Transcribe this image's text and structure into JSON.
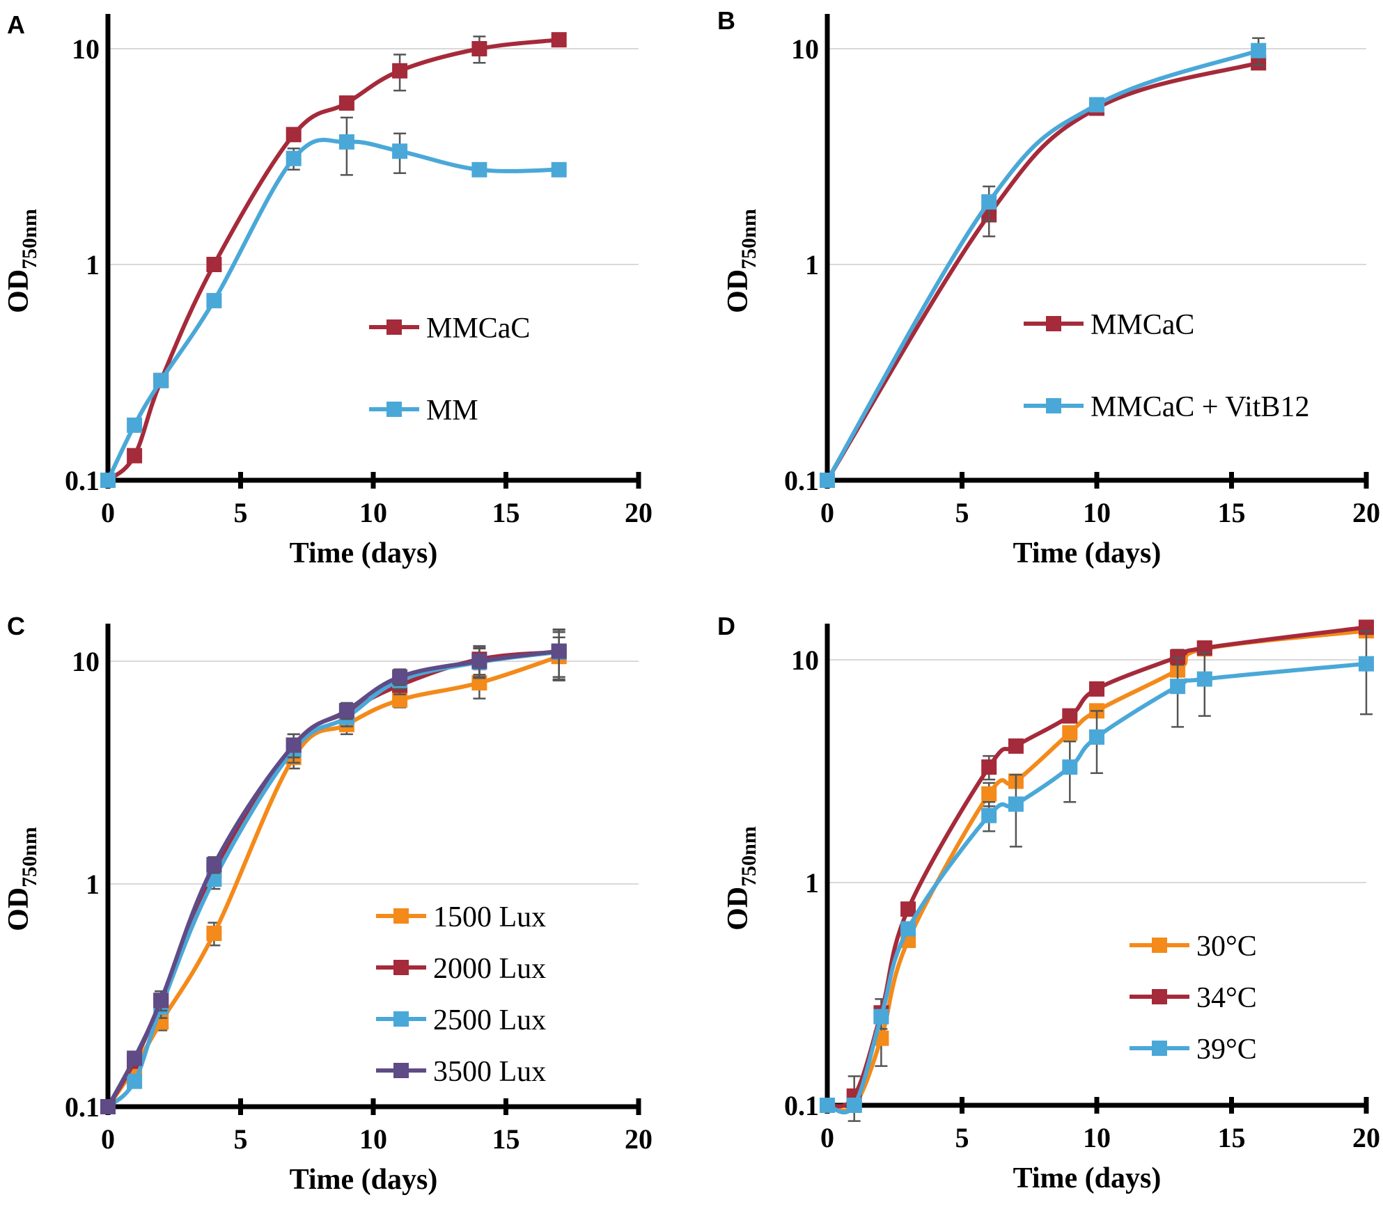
{
  "colors": {
    "red": "#a52a3a",
    "blue": "#4aa8d8",
    "orange": "#f38a1a",
    "purple": "#5f4b86",
    "axis": "#000000",
    "grid": "#d9d9d9",
    "error": "#555555"
  },
  "chart_data": [
    {
      "panel": "A",
      "type": "line",
      "yscale": "log",
      "xlabel": "Time (days)",
      "ylabel_main": "OD",
      "ylabel_sub": "750nm",
      "xlim": [
        0,
        20
      ],
      "ylim": [
        0.1,
        15
      ],
      "xticks": [
        0,
        5,
        10,
        15,
        20
      ],
      "xtick_labels": [
        "0",
        "5",
        "10",
        "15",
        "20"
      ],
      "yticks": [
        0.1,
        1,
        10
      ],
      "ytick_labels": [
        "0.1",
        "1",
        "10"
      ],
      "legend_position": "center-right",
      "series": [
        {
          "name": "MMCaC",
          "color": "red",
          "x": [
            0,
            1,
            2,
            4,
            7,
            9,
            11,
            14,
            17
          ],
          "y": [
            0.1,
            0.13,
            0.29,
            1.0,
            4.0,
            5.6,
            7.9,
            10.0,
            11.0
          ],
          "err": [
            0,
            0,
            0,
            0,
            0.2,
            0.3,
            1.5,
            1.4,
            0
          ]
        },
        {
          "name": "MM",
          "color": "blue",
          "x": [
            0,
            1,
            2,
            4,
            7,
            9,
            11,
            14,
            17
          ],
          "y": [
            0.1,
            0.18,
            0.29,
            0.68,
            3.1,
            3.7,
            3.35,
            2.75,
            2.75
          ],
          "err": [
            0,
            0,
            0,
            0,
            0.35,
            1.1,
            0.7,
            0,
            0
          ]
        }
      ]
    },
    {
      "panel": "B",
      "type": "line",
      "yscale": "log",
      "xlabel": "Time (days)",
      "ylabel_main": "OD",
      "ylabel_sub": "750nm",
      "xlim": [
        0,
        20
      ],
      "ylim": [
        0.1,
        15
      ],
      "xticks": [
        0,
        5,
        10,
        15,
        20
      ],
      "xtick_labels": [
        "0",
        "5",
        "10",
        "15",
        "20"
      ],
      "yticks": [
        0.1,
        1,
        10
      ],
      "ytick_labels": [
        "0.1",
        "1",
        "10"
      ],
      "legend_position": "center-right",
      "series": [
        {
          "name": "MMCaC",
          "color": "red",
          "x": [
            0,
            6,
            10,
            16
          ],
          "y": [
            0.1,
            1.7,
            5.3,
            8.6
          ],
          "err": [
            0,
            0.35,
            0,
            0
          ]
        },
        {
          "name": "MMCaC + VitB12",
          "color": "blue",
          "x": [
            0,
            6,
            10,
            16
          ],
          "y": [
            0.1,
            1.95,
            5.5,
            9.8
          ],
          "err": [
            0,
            0.35,
            0,
            1.4
          ]
        }
      ]
    },
    {
      "panel": "C",
      "type": "line",
      "yscale": "log",
      "xlabel": "Time (days)",
      "ylabel_main": "OD",
      "ylabel_sub": "750nm",
      "xlim": [
        0,
        20
      ],
      "ylim": [
        0.1,
        15
      ],
      "xticks": [
        0,
        5,
        10,
        15,
        20
      ],
      "xtick_labels": [
        "0",
        "5",
        "10",
        "15",
        "20"
      ],
      "yticks": [
        0.1,
        1,
        10
      ],
      "ytick_labels": [
        "0.1",
        "1",
        "10"
      ],
      "legend_position": "bottom-right",
      "series": [
        {
          "name": "1500 Lux",
          "color": "orange",
          "x": [
            0,
            1,
            2,
            4,
            7,
            9,
            11,
            14,
            17
          ],
          "y": [
            0.1,
            0.15,
            0.24,
            0.6,
            3.7,
            5.2,
            6.7,
            8.0,
            10.5
          ],
          "err": [
            0,
            0,
            0.02,
            0.07,
            0.4,
            0.5,
            0.5,
            1.2,
            2.3
          ]
        },
        {
          "name": "2000 Lux",
          "color": "red",
          "x": [
            0,
            1,
            2,
            4,
            7,
            9,
            11,
            14,
            17
          ],
          "y": [
            0.1,
            0.16,
            0.3,
            1.15,
            4.2,
            5.9,
            7.8,
            10.2,
            11.0
          ],
          "err": [
            0,
            0,
            0.03,
            0.1,
            0.5,
            0.5,
            0.7,
            1.5,
            2.8
          ]
        },
        {
          "name": "2500 Lux",
          "color": "blue",
          "x": [
            0,
            1,
            2,
            4,
            7,
            9,
            11,
            14,
            17
          ],
          "y": [
            0.1,
            0.13,
            0.28,
            1.05,
            4.0,
            5.6,
            8.2,
            9.9,
            11.0
          ],
          "err": [
            0,
            0,
            0.03,
            0.1,
            0.5,
            0.5,
            0.7,
            1.5,
            2.5
          ]
        },
        {
          "name": "3500 Lux",
          "color": "purple",
          "x": [
            0,
            1,
            2,
            4,
            7,
            9,
            11,
            14,
            17
          ],
          "y": [
            0.1,
            0.165,
            0.3,
            1.22,
            4.2,
            6.0,
            8.5,
            10.0,
            11.1
          ],
          "err": [
            0,
            0,
            0.03,
            0.1,
            0.5,
            0.5,
            0.7,
            1.5,
            2.8
          ]
        }
      ]
    },
    {
      "panel": "D",
      "type": "line",
      "yscale": "log",
      "xlabel": "Time (days)",
      "ylabel_main": "OD",
      "ylabel_sub": "750nm",
      "xlim": [
        0,
        20
      ],
      "ylim": [
        0.1,
        15
      ],
      "xticks": [
        0,
        5,
        10,
        15,
        20
      ],
      "xtick_labels": [
        "0",
        "5",
        "10",
        "15",
        "20"
      ],
      "yticks": [
        0.1,
        1,
        10
      ],
      "ytick_labels": [
        "0.1",
        "1",
        "10"
      ],
      "legend_position": "bottom-right",
      "series": [
        {
          "name": "30°C",
          "color": "orange",
          "x": [
            0,
            1,
            2,
            3,
            6,
            7,
            9,
            10,
            13,
            14,
            20
          ],
          "y": [
            0.1,
            0.1,
            0.2,
            0.55,
            2.5,
            2.85,
            4.7,
            5.9,
            9.0,
            11.2,
            13.5
          ],
          "err": [
            0,
            0,
            0.05,
            0,
            0.3,
            0,
            0,
            0,
            0,
            0,
            0
          ]
        },
        {
          "name": "34°C",
          "color": "red",
          "x": [
            0,
            1,
            2,
            3,
            6,
            7,
            9,
            10,
            13,
            14,
            20
          ],
          "y": [
            0.1,
            0.11,
            0.26,
            0.76,
            3.3,
            4.1,
            5.6,
            7.4,
            10.3,
            11.3,
            14.0
          ],
          "err": [
            0,
            0.025,
            0.04,
            0,
            0.4,
            0,
            0,
            0,
            0.8,
            0,
            0
          ]
        },
        {
          "name": "39°C",
          "color": "blue",
          "x": [
            0,
            1,
            2,
            3,
            6,
            7,
            9,
            10,
            13,
            14,
            20
          ],
          "y": [
            0.1,
            0.1,
            0.25,
            0.62,
            2.0,
            2.25,
            3.3,
            4.5,
            7.6,
            8.2,
            9.6
          ],
          "err": [
            0,
            0,
            0,
            0,
            0.3,
            0.8,
            1.0,
            1.4,
            2.6,
            2.6,
            3.9
          ]
        }
      ]
    }
  ]
}
